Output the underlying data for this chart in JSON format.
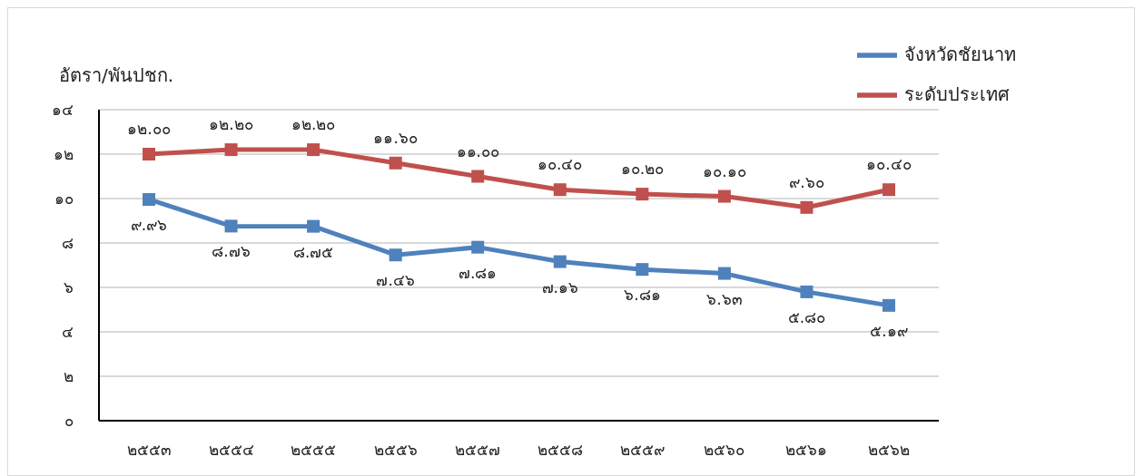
{
  "chart_data": {
    "type": "line",
    "ylabel": "อัตรา/พันปชก.",
    "categories": [
      "๒๕๕๓",
      "๒๕๕๔",
      "๒๕๕๕",
      "๒๕๕๖",
      "๒๕๕๗",
      "๒๕๕๘",
      "๒๕๕๙",
      "๒๕๖๐",
      "๒๕๖๑",
      "๒๕๖๒"
    ],
    "series": [
      {
        "name": "จังหวัดชัยนาท",
        "color": "#4f81bd",
        "values": [
          9.96,
          8.76,
          8.75,
          7.46,
          7.81,
          7.16,
          6.81,
          6.63,
          5.8,
          5.19
        ],
        "value_labels": [
          "๙.๙๖",
          "๘.๗๖",
          "๘.๗๕",
          "๗.๔๖",
          "๗.๘๑",
          "๗.๑๖",
          "๖.๘๑",
          "๖.๖๓",
          "๕.๘๐",
          "๕.๑๙"
        ]
      },
      {
        "name": "ระดับประเทศ",
        "color": "#c0504d",
        "values": [
          12.0,
          12.2,
          12.2,
          11.6,
          11.0,
          10.4,
          10.2,
          10.1,
          9.6,
          10.4
        ],
        "value_labels": [
          "๑๒.๐๐",
          "๑๒.๒๐",
          "๑๒.๒๐",
          "๑๑.๖๐",
          "๑๑.๐๐",
          "๑๐.๔๐",
          "๑๐.๒๐",
          "๑๐.๑๐",
          "๙.๖๐",
          "๑๐.๔๐"
        ]
      }
    ],
    "ylim": [
      0,
      14
    ],
    "yticks": [
      {
        "value": 0,
        "label": "๐"
      },
      {
        "value": 2,
        "label": "๒"
      },
      {
        "value": 4,
        "label": "๔"
      },
      {
        "value": 6,
        "label": "๖"
      },
      {
        "value": 8,
        "label": "๘"
      },
      {
        "value": 10,
        "label": "๑๐"
      },
      {
        "value": 12,
        "label": "๑๒"
      },
      {
        "value": 14,
        "label": "๑๔"
      }
    ],
    "grid": "y",
    "legend": "top right",
    "marker": "square",
    "line_style": "solid"
  }
}
